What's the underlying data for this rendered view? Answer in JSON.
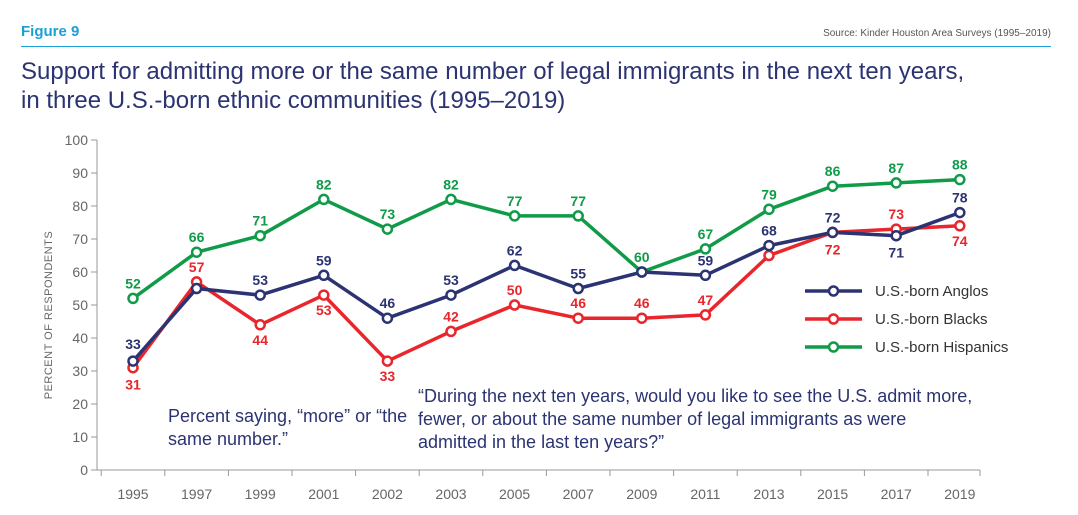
{
  "figure_label": "Figure 9",
  "source": "Source: Kinder Houston Area Surveys (1995–2019)",
  "title_line1": "Support for admitting more or the same number of legal immigrants in the next ten years,",
  "title_line2": "in three U.S.-born ethnic communities (1995–2019)",
  "note_left": "Percent saying, “more” or “the same number.”",
  "note_right": "“During the next ten years, would you like to see the U.S. admit more, fewer, or about the same number of legal immigrants as were admitted in the last ten years?”",
  "chart_data": {
    "type": "line",
    "ylabel": "PERCENT OF RESPONDENTS",
    "xlabel": "",
    "ylim": [
      0,
      100
    ],
    "yticks": [
      0,
      10,
      20,
      30,
      40,
      50,
      60,
      70,
      80,
      90,
      100
    ],
    "grid": false,
    "legend_position": "right",
    "categories": [
      "1995",
      "1997",
      "1999",
      "2001",
      "2002",
      "2003",
      "2005",
      "2007",
      "2009",
      "2011",
      "2013",
      "2015",
      "2017",
      "2019"
    ],
    "series": [
      {
        "name": "U.S.-born Anglos",
        "color": "#2b3373",
        "values": [
          33,
          55,
          53,
          59,
          46,
          53,
          62,
          55,
          60,
          59,
          68,
          72,
          71,
          78
        ]
      },
      {
        "name": "U.S.-born Blacks",
        "color": "#e8262c",
        "values": [
          31,
          57,
          44,
          53,
          33,
          42,
          50,
          46,
          46,
          47,
          65,
          72,
          73,
          74
        ]
      },
      {
        "name": "U.S.-born Hispanics",
        "color": "#0f9b48",
        "values": [
          52,
          66,
          71,
          82,
          73,
          82,
          77,
          77,
          60,
          67,
          79,
          86,
          87,
          88
        ]
      }
    ],
    "data_labels": [
      {
        "series": 0,
        "index": 0,
        "text": "33"
      },
      {
        "series": 0,
        "index": 2,
        "text": "53"
      },
      {
        "series": 0,
        "index": 3,
        "text": "59"
      },
      {
        "series": 0,
        "index": 4,
        "text": "46"
      },
      {
        "series": 0,
        "index": 5,
        "text": "53"
      },
      {
        "series": 0,
        "index": 6,
        "text": "62"
      },
      {
        "series": 0,
        "index": 7,
        "text": "55"
      },
      {
        "series": 0,
        "index": 9,
        "text": "59"
      },
      {
        "series": 0,
        "index": 10,
        "text": "68"
      },
      {
        "series": 0,
        "index": 11,
        "text": "72"
      },
      {
        "series": 0,
        "index": 12,
        "text": "71"
      },
      {
        "series": 0,
        "index": 13,
        "text": "78"
      },
      {
        "series": 1,
        "index": 0,
        "text": "31"
      },
      {
        "series": 1,
        "index": 1,
        "text": "57"
      },
      {
        "series": 1,
        "index": 2,
        "text": "44"
      },
      {
        "series": 1,
        "index": 3,
        "text": "53"
      },
      {
        "series": 1,
        "index": 4,
        "text": "33"
      },
      {
        "series": 1,
        "index": 5,
        "text": "42"
      },
      {
        "series": 1,
        "index": 6,
        "text": "50"
      },
      {
        "series": 1,
        "index": 7,
        "text": "46"
      },
      {
        "series": 1,
        "index": 8,
        "text": "46"
      },
      {
        "series": 1,
        "index": 9,
        "text": "47"
      },
      {
        "series": 1,
        "index": 11,
        "text": "72"
      },
      {
        "series": 1,
        "index": 12,
        "text": "73"
      },
      {
        "series": 1,
        "index": 13,
        "text": "74"
      },
      {
        "series": 2,
        "index": 0,
        "text": "52"
      },
      {
        "series": 2,
        "index": 1,
        "text": "66"
      },
      {
        "series": 2,
        "index": 2,
        "text": "71"
      },
      {
        "series": 2,
        "index": 3,
        "text": "82"
      },
      {
        "series": 2,
        "index": 4,
        "text": "73"
      },
      {
        "series": 2,
        "index": 5,
        "text": "82"
      },
      {
        "series": 2,
        "index": 6,
        "text": "77"
      },
      {
        "series": 2,
        "index": 7,
        "text": "77"
      },
      {
        "series": 2,
        "index": 8,
        "text": "60"
      },
      {
        "series": 2,
        "index": 9,
        "text": "67"
      },
      {
        "series": 2,
        "index": 10,
        "text": "79"
      },
      {
        "series": 2,
        "index": 11,
        "text": "86"
      },
      {
        "series": 2,
        "index": 12,
        "text": "87"
      },
      {
        "series": 2,
        "index": 13,
        "text": "88"
      }
    ]
  }
}
